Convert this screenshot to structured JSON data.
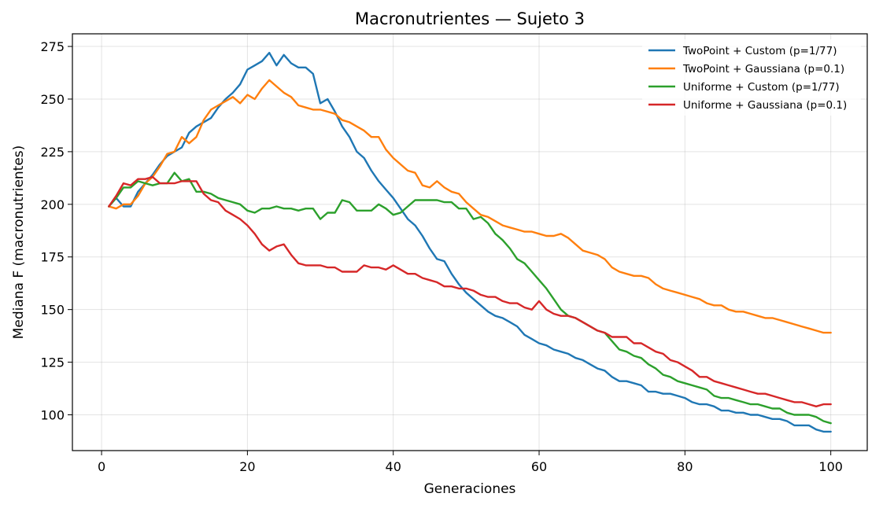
{
  "chart_data": {
    "type": "line",
    "title": "Macronutrientes — Sujeto 3",
    "xlabel": "Generaciones",
    "ylabel": "Mediana F (macronutrientes)",
    "xlim": [
      -4,
      105
    ],
    "ylim": [
      83,
      281
    ],
    "xticks": [
      0,
      20,
      40,
      60,
      80,
      100
    ],
    "yticks": [
      100,
      125,
      150,
      175,
      200,
      225,
      250,
      275
    ],
    "grid": true,
    "legend_position": "top-right",
    "series": [
      {
        "name": "TwoPoint + Custom (p=1/77)",
        "color": "#1f77b4",
        "x": [
          1,
          2,
          3,
          4,
          5,
          6,
          7,
          8,
          9,
          10,
          11,
          12,
          13,
          14,
          15,
          16,
          17,
          18,
          19,
          20,
          21,
          22,
          23,
          24,
          25,
          26,
          27,
          28,
          29,
          30,
          31,
          32,
          33,
          34,
          35,
          36,
          37,
          38,
          39,
          40,
          41,
          42,
          43,
          44,
          45,
          46,
          47,
          48,
          49,
          50,
          51,
          52,
          53,
          54,
          55,
          56,
          57,
          58,
          59,
          60,
          61,
          62,
          63,
          64,
          65,
          66,
          67,
          68,
          69,
          70,
          71,
          72,
          73,
          74,
          75,
          76,
          77,
          78,
          79,
          80,
          81,
          82,
          83,
          84,
          85,
          86,
          87,
          88,
          89,
          90,
          91,
          92,
          93,
          94,
          95,
          96,
          97,
          98,
          99,
          100
        ],
        "y": [
          199,
          203,
          199,
          199,
          206,
          210,
          214,
          219,
          223,
          225,
          227,
          234,
          237,
          239,
          241,
          246,
          250,
          253,
          257,
          264,
          266,
          268,
          272,
          266,
          271,
          267,
          265,
          265,
          262,
          248,
          250,
          244,
          237,
          232,
          225,
          222,
          216,
          211,
          207,
          203,
          198,
          193,
          190,
          185,
          179,
          174,
          173,
          167,
          162,
          158,
          155,
          152,
          149,
          147,
          146,
          144,
          142,
          138,
          136,
          134,
          133,
          131,
          130,
          129,
          127,
          126,
          124,
          122,
          121,
          118,
          116,
          116,
          115,
          114,
          111,
          111,
          110,
          110,
          109,
          108,
          106,
          105,
          105,
          104,
          102,
          102,
          101,
          101,
          100,
          100,
          99,
          98,
          98,
          97,
          95,
          95,
          95,
          93,
          92,
          92
        ]
      },
      {
        "name": "TwoPoint + Gaussiana (p=0.1)",
        "color": "#ff7f0e",
        "x": [
          1,
          2,
          3,
          4,
          5,
          6,
          7,
          8,
          9,
          10,
          11,
          12,
          13,
          14,
          15,
          16,
          17,
          18,
          19,
          20,
          21,
          22,
          23,
          24,
          25,
          26,
          27,
          28,
          29,
          30,
          31,
          32,
          33,
          34,
          35,
          36,
          37,
          38,
          39,
          40,
          41,
          42,
          43,
          44,
          45,
          46,
          47,
          48,
          49,
          50,
          51,
          52,
          53,
          54,
          55,
          56,
          57,
          58,
          59,
          60,
          61,
          62,
          63,
          64,
          65,
          66,
          67,
          68,
          69,
          70,
          71,
          72,
          73,
          74,
          75,
          76,
          77,
          78,
          79,
          80,
          81,
          82,
          83,
          84,
          85,
          86,
          87,
          88,
          89,
          90,
          91,
          92,
          93,
          94,
          95,
          96,
          97,
          98,
          99,
          100
        ],
        "y": [
          199,
          198,
          200,
          200,
          204,
          210,
          213,
          218,
          224,
          225,
          232,
          229,
          232,
          240,
          245,
          247,
          249,
          251,
          248,
          252,
          250,
          255,
          259,
          256,
          253,
          251,
          247,
          246,
          245,
          245,
          244,
          243,
          240,
          239,
          237,
          235,
          232,
          232,
          226,
          222,
          219,
          216,
          215,
          209,
          208,
          211,
          208,
          206,
          205,
          201,
          198,
          195,
          194,
          192,
          190,
          189,
          188,
          187,
          187,
          186,
          185,
          185,
          186,
          184,
          181,
          178,
          177,
          176,
          174,
          170,
          168,
          167,
          166,
          166,
          165,
          162,
          160,
          159,
          158,
          157,
          156,
          155,
          153,
          152,
          152,
          150,
          149,
          149,
          148,
          147,
          146,
          146,
          145,
          144,
          143,
          142,
          141,
          140,
          139,
          139
        ]
      },
      {
        "name": "Uniforme + Custom (p=1/77)",
        "color": "#2ca02c",
        "x": [
          1,
          2,
          3,
          4,
          5,
          6,
          7,
          8,
          9,
          10,
          11,
          12,
          13,
          14,
          15,
          16,
          17,
          18,
          19,
          20,
          21,
          22,
          23,
          24,
          25,
          26,
          27,
          28,
          29,
          30,
          31,
          32,
          33,
          34,
          35,
          36,
          37,
          38,
          39,
          40,
          41,
          42,
          43,
          44,
          45,
          46,
          47,
          48,
          49,
          50,
          51,
          52,
          53,
          54,
          55,
          56,
          57,
          58,
          59,
          60,
          61,
          62,
          63,
          64,
          65,
          66,
          67,
          68,
          69,
          70,
          71,
          72,
          73,
          74,
          75,
          76,
          77,
          78,
          79,
          80,
          81,
          82,
          83,
          84,
          85,
          86,
          87,
          88,
          89,
          90,
          91,
          92,
          93,
          94,
          95,
          96,
          97,
          98,
          99,
          100
        ],
        "y": [
          199,
          203,
          208,
          208,
          211,
          210,
          209,
          210,
          210,
          215,
          211,
          212,
          206,
          206,
          205,
          203,
          202,
          201,
          200,
          197,
          196,
          198,
          198,
          199,
          198,
          198,
          197,
          198,
          198,
          193,
          196,
          196,
          202,
          201,
          197,
          197,
          197,
          200,
          198,
          195,
          196,
          199,
          202,
          202,
          202,
          202,
          201,
          201,
          198,
          198,
          193,
          194,
          191,
          186,
          183,
          179,
          174,
          172,
          168,
          164,
          160,
          155,
          150,
          147,
          146,
          144,
          142,
          140,
          139,
          135,
          131,
          130,
          128,
          127,
          124,
          122,
          119,
          118,
          116,
          115,
          114,
          113,
          112,
          109,
          108,
          108,
          107,
          106,
          105,
          105,
          104,
          103,
          103,
          101,
          100,
          100,
          100,
          99,
          97,
          96
        ]
      },
      {
        "name": "Uniforme + Gaussiana (p=0.1)",
        "color": "#d62728",
        "x": [
          1,
          2,
          3,
          4,
          5,
          6,
          7,
          8,
          9,
          10,
          11,
          12,
          13,
          14,
          15,
          16,
          17,
          18,
          19,
          20,
          21,
          22,
          23,
          24,
          25,
          26,
          27,
          28,
          29,
          30,
          31,
          32,
          33,
          34,
          35,
          36,
          37,
          38,
          39,
          40,
          41,
          42,
          43,
          44,
          45,
          46,
          47,
          48,
          49,
          50,
          51,
          52,
          53,
          54,
          55,
          56,
          57,
          58,
          59,
          60,
          61,
          62,
          63,
          64,
          65,
          66,
          67,
          68,
          69,
          70,
          71,
          72,
          73,
          74,
          75,
          76,
          77,
          78,
          79,
          80,
          81,
          82,
          83,
          84,
          85,
          86,
          87,
          88,
          89,
          90,
          91,
          92,
          93,
          94,
          95,
          96,
          97,
          98,
          99,
          100
        ],
        "y": [
          199,
          204,
          210,
          209,
          212,
          212,
          213,
          210,
          210,
          210,
          211,
          211,
          211,
          205,
          202,
          201,
          197,
          195,
          193,
          190,
          186,
          181,
          178,
          180,
          181,
          176,
          172,
          171,
          171,
          171,
          170,
          170,
          168,
          168,
          168,
          171,
          170,
          170,
          169,
          171,
          169,
          167,
          167,
          165,
          164,
          163,
          161,
          161,
          160,
          160,
          159,
          157,
          156,
          156,
          154,
          153,
          153,
          151,
          150,
          154,
          150,
          148,
          147,
          147,
          146,
          144,
          142,
          140,
          139,
          137,
          137,
          137,
          134,
          134,
          132,
          130,
          129,
          126,
          125,
          123,
          121,
          118,
          118,
          116,
          115,
          114,
          113,
          112,
          111,
          110,
          110,
          109,
          108,
          107,
          106,
          106,
          105,
          104,
          105,
          105
        ]
      }
    ]
  }
}
